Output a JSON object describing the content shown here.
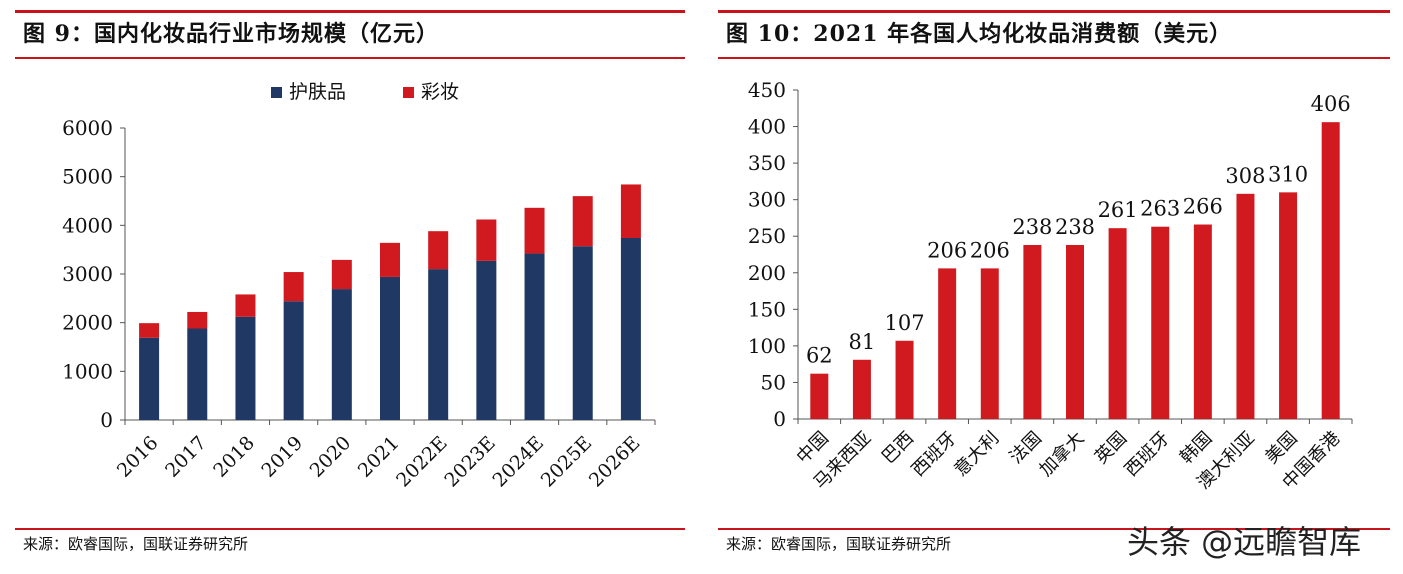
{
  "left": {
    "title": "图 9：国内化妆品行业市场规模（亿元）",
    "source": "来源：欧睿国际，国联证券研究所",
    "chart_data": {
      "type": "bar",
      "stacked": true,
      "categories": [
        "2016",
        "2017",
        "2018",
        "2019",
        "2020",
        "2021",
        "2022E",
        "2023E",
        "2024E",
        "2025E",
        "2026E"
      ],
      "series": [
        {
          "name": "护肤品",
          "color": "#1f3864",
          "values": [
            1690,
            1880,
            2120,
            2440,
            2690,
            2940,
            3100,
            3270,
            3420,
            3570,
            3740
          ]
        },
        {
          "name": "彩妆",
          "color": "#d11a1f",
          "values": [
            300,
            340,
            460,
            600,
            600,
            700,
            780,
            850,
            940,
            1030,
            1100
          ]
        }
      ],
      "ylim": [
        0,
        6000
      ],
      "yticks": [
        0,
        1000,
        2000,
        3000,
        4000,
        5000,
        6000
      ],
      "legend": "top-center",
      "grid": false
    }
  },
  "right": {
    "title": "图 10：2021 年各国人均化妆品消费额（美元）",
    "source": "来源：欧睿国际，国联证券研究所",
    "chart_data": {
      "type": "bar",
      "categories": [
        "中国",
        "马来西亚",
        "巴西",
        "西班牙",
        "意大利",
        "法国",
        "加拿大",
        "英国",
        "西班牙",
        "韩国",
        "澳大利亚",
        "美国",
        "中国香港"
      ],
      "values": [
        62,
        81,
        107,
        206,
        206,
        238,
        238,
        261,
        263,
        266,
        308,
        310,
        406
      ],
      "bar_color": "#d11a1f",
      "ylim": [
        0,
        450
      ],
      "yticks": [
        0,
        50,
        100,
        150,
        200,
        250,
        300,
        350,
        400,
        450
      ],
      "data_labels": true,
      "grid": false
    }
  },
  "watermark": "头条 @远瞻智库"
}
